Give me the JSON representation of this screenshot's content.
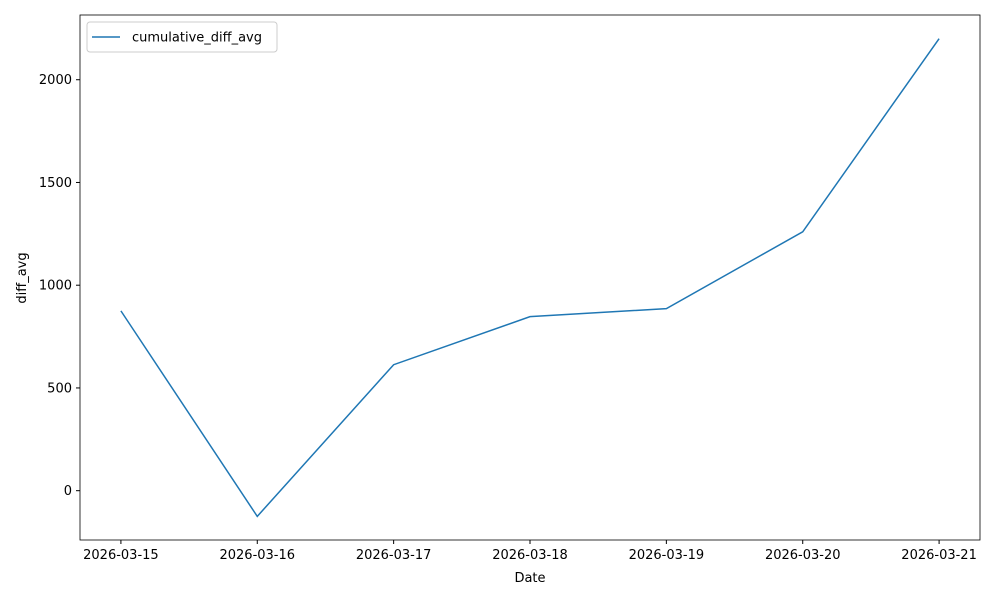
{
  "chart_data": {
    "type": "line",
    "xlabel": "Date",
    "ylabel": "diff_avg",
    "categories": [
      "2026-03-15",
      "2026-03-16",
      "2026-03-17",
      "2026-03-18",
      "2026-03-19",
      "2026-03-20",
      "2026-03-21"
    ],
    "series": [
      {
        "name": "cumulative_diff_avg",
        "color": "#1f77b4",
        "values": [
          875,
          -125,
          613,
          847,
          886,
          1260,
          2200
        ]
      }
    ],
    "ylim": [
      -240,
      2315
    ],
    "yticks": [
      0,
      500,
      1000,
      1500,
      2000
    ],
    "legend": "upper left",
    "grid": false
  }
}
